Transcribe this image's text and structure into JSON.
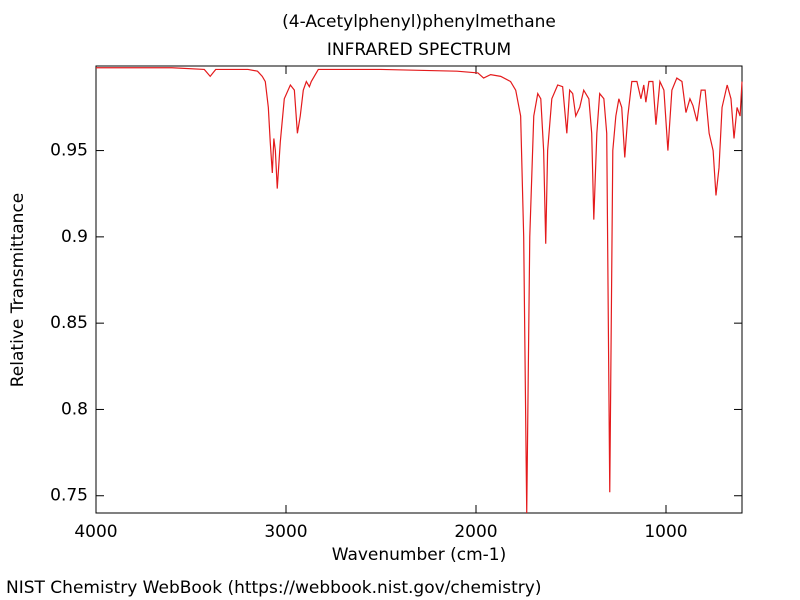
{
  "chart_data": {
    "type": "line",
    "title": "(4-Acetylphenyl)phenylmethane",
    "subtitle": "INFRARED SPECTRUM",
    "x_label": "Wavenumber (cm-1)",
    "y_label": "Relative Transmittance",
    "source": "NIST Chemistry WebBook (https://webbook.nist.gov/chemistry)",
    "color": "#e41a1c",
    "xlim": [
      4000,
      600
    ],
    "ylim": [
      0.74,
      0.999
    ],
    "xticks": [
      4000,
      3000,
      2000,
      1000
    ],
    "yticks": [
      0.75,
      0.8,
      0.85,
      0.9,
      0.95
    ],
    "x": [
      4000,
      3600,
      3430,
      3399,
      3370,
      3200,
      3150,
      3125,
      3109,
      3093,
      3083,
      3072,
      3064,
      3056,
      3046,
      3030,
      3009,
      2977,
      2956,
      2940,
      2925,
      2909,
      2893,
      2877,
      2867,
      2830,
      2500,
      2100,
      1990,
      1960,
      1923,
      1870,
      1818,
      1791,
      1765,
      1749,
      1733,
      1717,
      1696,
      1675,
      1659,
      1644,
      1633,
      1623,
      1601,
      1570,
      1544,
      1522,
      1507,
      1491,
      1475,
      1454,
      1433,
      1406,
      1391,
      1380,
      1364,
      1349,
      1327,
      1312,
      1296,
      1280,
      1264,
      1248,
      1233,
      1217,
      1201,
      1180,
      1153,
      1132,
      1117,
      1106,
      1090,
      1069,
      1053,
      1032,
      1011,
      990,
      969,
      943,
      916,
      895,
      874,
      858,
      837,
      815,
      794,
      773,
      752,
      737,
      721,
      705,
      678,
      658,
      642,
      626,
      610,
      600
    ],
    "values": [
      0.998,
      0.998,
      0.997,
      0.993,
      0.997,
      0.997,
      0.996,
      0.993,
      0.99,
      0.975,
      0.955,
      0.937,
      0.957,
      0.95,
      0.928,
      0.955,
      0.98,
      0.988,
      0.985,
      0.96,
      0.97,
      0.985,
      0.99,
      0.987,
      0.99,
      0.997,
      0.997,
      0.996,
      0.995,
      0.992,
      0.994,
      0.993,
      0.99,
      0.985,
      0.97,
      0.9,
      0.74,
      0.9,
      0.97,
      0.983,
      0.98,
      0.95,
      0.896,
      0.95,
      0.98,
      0.988,
      0.987,
      0.96,
      0.985,
      0.983,
      0.97,
      0.975,
      0.985,
      0.98,
      0.96,
      0.91,
      0.96,
      0.983,
      0.98,
      0.96,
      0.752,
      0.95,
      0.97,
      0.98,
      0.975,
      0.946,
      0.97,
      0.99,
      0.99,
      0.98,
      0.988,
      0.978,
      0.99,
      0.99,
      0.965,
      0.99,
      0.985,
      0.95,
      0.985,
      0.992,
      0.99,
      0.972,
      0.98,
      0.976,
      0.967,
      0.985,
      0.985,
      0.96,
      0.95,
      0.924,
      0.94,
      0.975,
      0.988,
      0.98,
      0.957,
      0.975,
      0.97,
      0.99
    ]
  }
}
